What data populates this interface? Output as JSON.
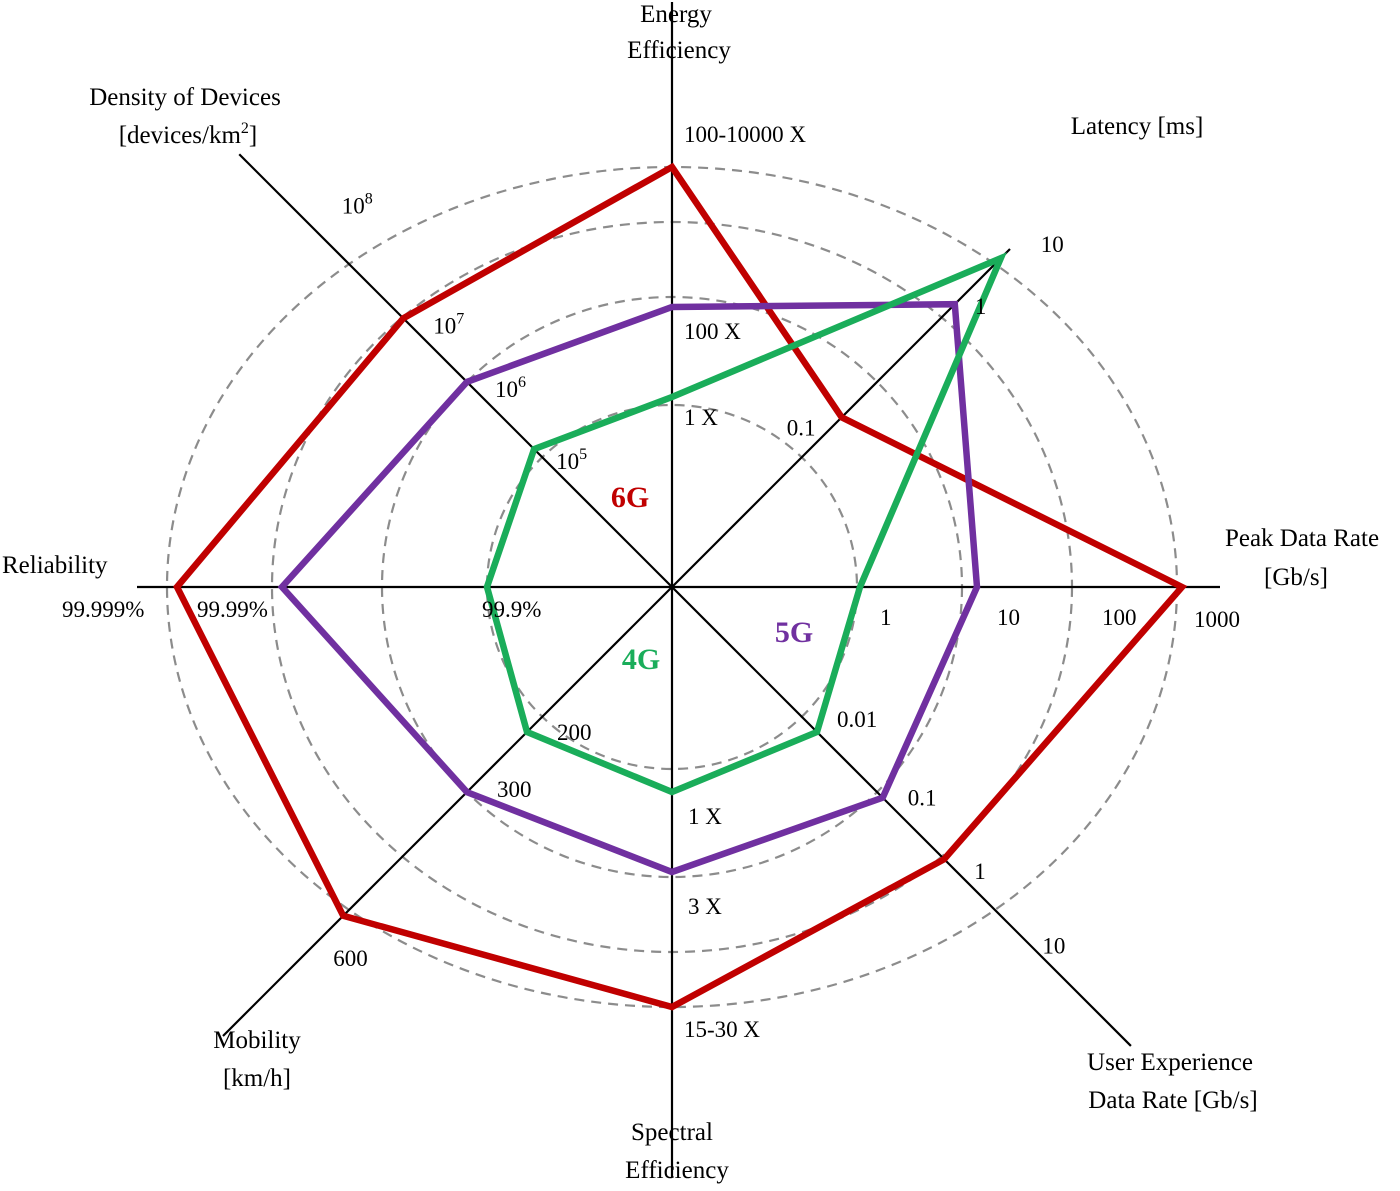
{
  "chart_data": {
    "type": "radar",
    "title": "",
    "axes": [
      {
        "key": "energy",
        "label": [
          "Energy",
          "Efficiency"
        ],
        "ticks": [
          "1 X",
          "100 X",
          "100-10000 X"
        ]
      },
      {
        "key": "latency",
        "label": [
          "Latency [ms]"
        ],
        "ticks": [
          "0.1",
          "1",
          "10"
        ]
      },
      {
        "key": "peak",
        "label": [
          "Peak Data Rate",
          "[Gb/s]"
        ],
        "ticks": [
          "1",
          "10",
          "100",
          "1000"
        ]
      },
      {
        "key": "user",
        "label": [
          "User Experience",
          "Data Rate [Gb/s]"
        ],
        "ticks": [
          "0.01",
          "0.1",
          "1",
          "10"
        ]
      },
      {
        "key": "spectral",
        "label": [
          "Spectral",
          "Efficiency"
        ],
        "ticks": [
          "1 X",
          "3 X",
          "15-30 X"
        ]
      },
      {
        "key": "mobility",
        "label": [
          "Mobility",
          "[km/h]"
        ],
        "ticks": [
          "200",
          "300",
          "600"
        ]
      },
      {
        "key": "reliability",
        "label": [
          "Reliability"
        ],
        "ticks": [
          "99.9%",
          "99.99%",
          "99.999%"
        ]
      },
      {
        "key": "density",
        "label": [
          "Density of Devices",
          "[devices/km",
          "2",
          "]"
        ],
        "ticks": [
          [
            "10",
            "5"
          ],
          [
            "10",
            "6"
          ],
          [
            "10",
            "7"
          ],
          [
            "10",
            "8"
          ]
        ]
      }
    ],
    "series": [
      {
        "name": "6G",
        "color": "#c00000",
        "values": {
          "energy": "100-10000 X",
          "latency": "0.1",
          "peak": "1000",
          "user": "1",
          "spectral": "15-30 X",
          "mobility": "600",
          "reliability": "99.999%",
          "density": "10^7"
        }
      },
      {
        "name": "5G",
        "color": "#7030a0",
        "values": {
          "energy": "100 X",
          "latency": "1",
          "peak": "10",
          "user": "0.1",
          "spectral": "3 X",
          "mobility": "300",
          "reliability": "99.99%",
          "density": "10^6"
        }
      },
      {
        "name": "4G",
        "color": "#1aad5a",
        "values": {
          "energy": "1 X",
          "latency": "10",
          "peak": "1",
          "user": "0.01",
          "spectral": "1 X",
          "mobility": "200",
          "reliability": "99.9%",
          "density": "10^5"
        }
      }
    ],
    "grid": "dashed concentric rings",
    "legend": "inline labels near center"
  }
}
